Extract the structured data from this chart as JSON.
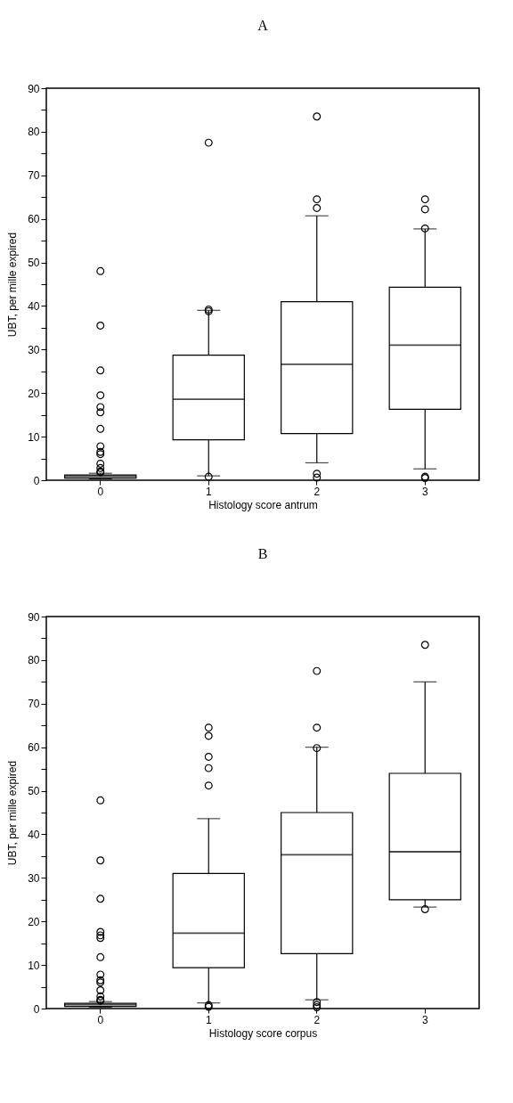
{
  "chart_data": [
    {
      "type": "box",
      "title": "A",
      "xlabel": "Histology score antrum",
      "ylabel": "UBT, per mille expired",
      "categories": [
        "0",
        "1",
        "2",
        "3"
      ],
      "ylim": [
        0,
        90
      ],
      "yticks": [
        0,
        {
          "value": 5,
          "label": null
        },
        10,
        {
          "value": 15,
          "label": null
        },
        20,
        {
          "value": 25,
          "label": null
        },
        30,
        {
          "value": 35,
          "label": null
        },
        40,
        {
          "value": 45,
          "label": null
        },
        50,
        {
          "value": 55,
          "label": null
        },
        60,
        {
          "value": 65,
          "label": null
        },
        70,
        {
          "value": 75,
          "label": null
        },
        80,
        {
          "value": 85,
          "label": null
        },
        90
      ],
      "grid": false,
      "marker": "circle",
      "boxes": [
        {
          "low": 0.3,
          "q1": 0.5,
          "median": 0.9,
          "q3": 1.2,
          "high": 1.6,
          "outliers": [
            48,
            35.5,
            25.2,
            19.5,
            16.8,
            15.6,
            11.8,
            7.8,
            6.5,
            6,
            3.8,
            2.8,
            2,
            1.8
          ]
        },
        {
          "low": 1,
          "q1": 9.3,
          "median": 18.6,
          "q3": 28.7,
          "high": 39,
          "outliers": [
            77.5,
            39.2,
            38.8,
            0.8
          ]
        },
        {
          "low": 4,
          "q1": 10.7,
          "median": 26.6,
          "q3": 41,
          "high": 60.7,
          "outliers": [
            83.5,
            64.5,
            62.5,
            1.5,
            0.6
          ]
        },
        {
          "low": 2.6,
          "q1": 16.3,
          "median": 31,
          "q3": 44.3,
          "high": 57.7,
          "outliers": [
            64.5,
            62.2,
            57.8,
            0.8,
            0.5
          ]
        }
      ]
    },
    {
      "type": "box",
      "title": "B",
      "xlabel": "Histology score corpus",
      "ylabel": "UBT, per mille expired",
      "categories": [
        "0",
        "1",
        "2",
        "3"
      ],
      "ylim": [
        0,
        90
      ],
      "yticks": [
        0,
        {
          "value": 5,
          "label": null
        },
        10,
        {
          "value": 15,
          "label": null
        },
        20,
        {
          "value": 25,
          "label": null
        },
        30,
        {
          "value": 35,
          "label": null
        },
        40,
        {
          "value": 45,
          "label": null
        },
        50,
        {
          "value": 55,
          "label": null
        },
        60,
        {
          "value": 65,
          "label": null
        },
        70,
        {
          "value": 75,
          "label": null
        },
        80,
        {
          "value": 85,
          "label": null
        },
        90
      ],
      "grid": false,
      "marker": "circle",
      "boxes": [
        {
          "low": 0.3,
          "q1": 0.5,
          "median": 0.9,
          "q3": 1.2,
          "high": 1.6,
          "outliers": [
            47.8,
            34,
            25.2,
            17.6,
            16.8,
            16.2,
            11.8,
            7.8,
            6.5,
            6,
            4.2,
            2.8,
            2,
            1.8
          ]
        },
        {
          "low": 1.3,
          "q1": 9.4,
          "median": 17.3,
          "q3": 31,
          "high": 43.6,
          "outliers": [
            64.5,
            62.6,
            57.8,
            55.2,
            51.2,
            0.8,
            0.4
          ]
        },
        {
          "low": 2,
          "q1": 12.6,
          "median": 35.3,
          "q3": 45,
          "high": 60,
          "outliers": [
            77.5,
            64.5,
            59.8,
            1.5,
            0.8,
            0.3
          ]
        },
        {
          "low": 23.3,
          "q1": 25,
          "median": 36,
          "q3": 54,
          "high": 75,
          "outliers": [
            83.5,
            22.8
          ]
        }
      ]
    }
  ]
}
